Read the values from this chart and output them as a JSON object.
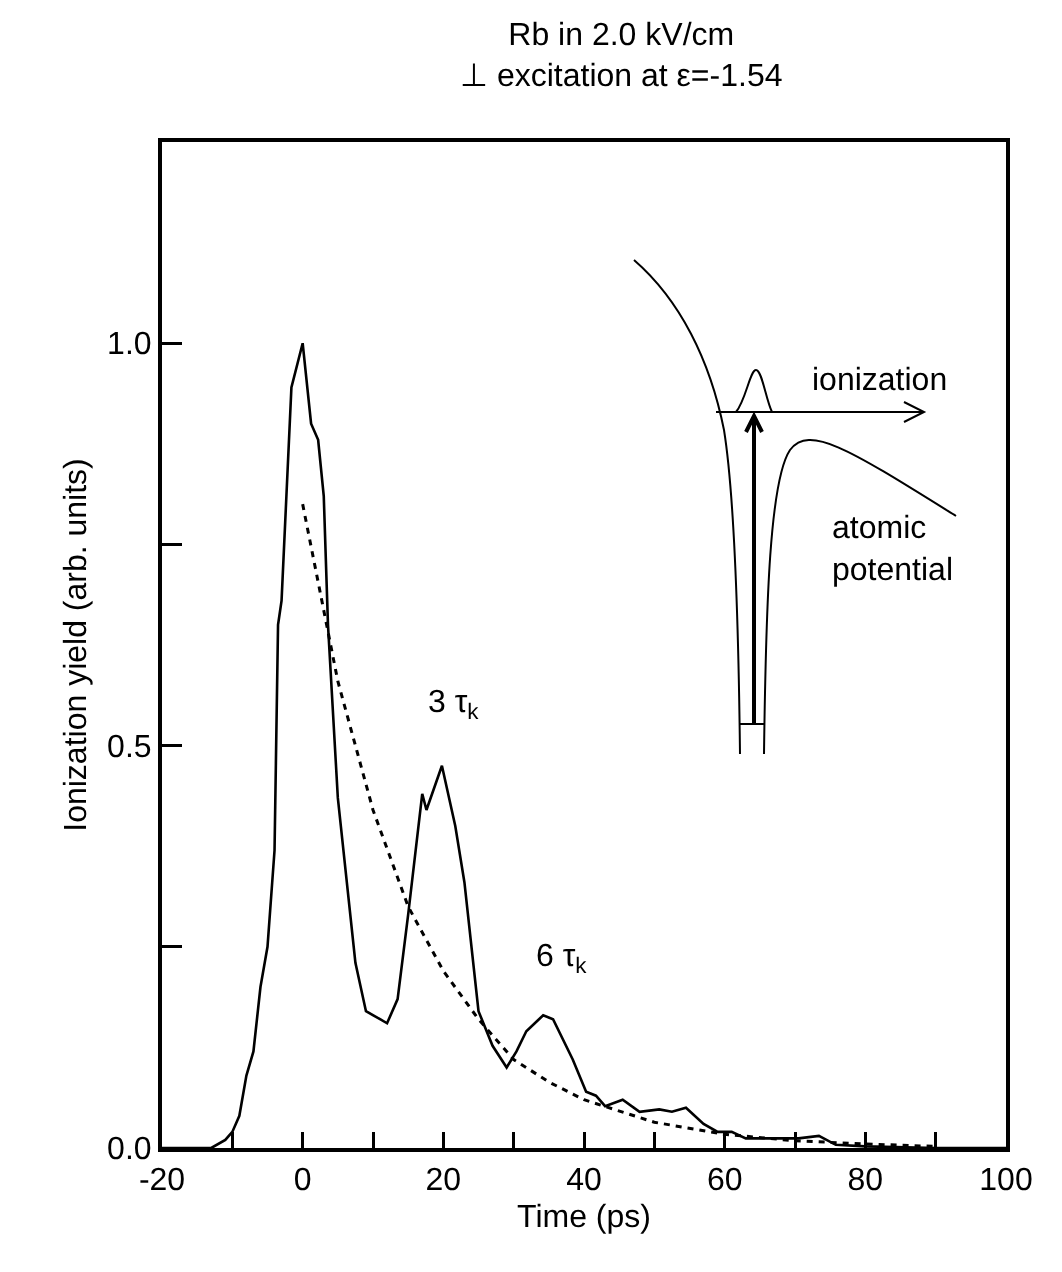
{
  "chart_data": {
    "type": "line",
    "title": "Rb in 2.0 kV/cm\n⊥ excitation at ε=-1.54",
    "xlabel": "Time (ps)",
    "ylabel": "Ionization yield (arb. units)",
    "xlim": [
      -20,
      100
    ],
    "xticks": [
      -20,
      {
        "value": -10,
        "label": null
      },
      0,
      {
        "value": 10,
        "label": null
      },
      20,
      {
        "value": 30,
        "label": null
      },
      40,
      {
        "value": 50,
        "label": null
      },
      60,
      {
        "value": 70,
        "label": null
      },
      80,
      {
        "value": 90,
        "label": null
      },
      100
    ],
    "ylim": [
      0,
      1.25
    ],
    "yticks": [
      {
        "value": 0,
        "label": "0.0"
      },
      {
        "value": 0.25,
        "label": null
      },
      0.5,
      {
        "value": 0.75,
        "label": null
      },
      {
        "value": 1,
        "label": "1.0"
      }
    ],
    "series": [
      {
        "color": "#000000",
        "line_style": "solid",
        "x": [
          -20,
          -15,
          -13,
          -11,
          -10,
          -9,
          -8,
          -7,
          -6,
          -5,
          -4,
          -3.5,
          -3,
          -1.6,
          0,
          1.2,
          2.2,
          3,
          3.6,
          5,
          7.5,
          9,
          11,
          12,
          13.5,
          15,
          17,
          17.6,
          19.8,
          21.7,
          23,
          25,
          27,
          29,
          30.4,
          31.8,
          34.2,
          35.6,
          38.4,
          40.3,
          41.7,
          43,
          45.5,
          47.9,
          50.7,
          52.5,
          54.5,
          57,
          59,
          61,
          63,
          70.5,
          73.4,
          75.8,
          80,
          90,
          100
        ],
        "values": [
          0,
          0,
          0,
          0.01,
          0.02,
          0.04,
          0.09,
          0.12,
          0.2,
          0.25,
          0.37,
          0.65,
          0.68,
          0.945,
          1.0,
          0.9,
          0.88,
          0.81,
          0.65,
          0.435,
          0.23,
          0.17,
          0.16,
          0.155,
          0.185,
          0.29,
          0.44,
          0.42,
          0.475,
          0.4,
          0.33,
          0.17,
          0.127,
          0.1,
          0.12,
          0.145,
          0.165,
          0.16,
          0.11,
          0.07,
          0.065,
          0.052,
          0.06,
          0.045,
          0.048,
          0.045,
          0.05,
          0.03,
          0.02,
          0.02,
          0.012,
          0.012,
          0.015,
          0.004,
          0.002,
          0,
          0
        ]
      },
      {
        "color": "#000000",
        "line_style": "dotted",
        "x": [
          0,
          5,
          10,
          15,
          20,
          25,
          30,
          35,
          40,
          50,
          60,
          70,
          80,
          90
        ],
        "values": [
          0.8,
          0.58,
          0.42,
          0.3,
          0.22,
          0.16,
          0.11,
          0.082,
          0.06,
          0.032,
          0.017,
          0.009,
          0.005,
          0.002
        ]
      }
    ],
    "annotations": [
      "3 τ$_{k}$",
      "6 τ$_{k}$",
      "ionization",
      "atomic\npotential"
    ]
  }
}
